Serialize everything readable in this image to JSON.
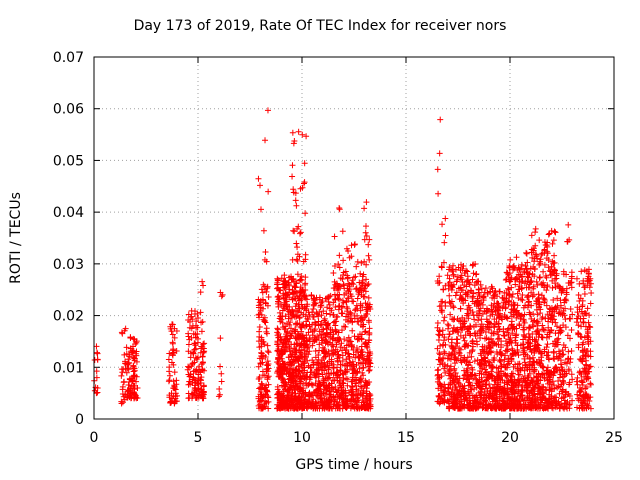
{
  "chart_data": {
    "type": "scatter",
    "title": "Day 173 of 2019, Rate Of TEC Index for receiver nors",
    "xlabel": "GPS time / hours",
    "ylabel": "ROTI / TECUs",
    "xlim": [
      0,
      25
    ],
    "ylim": [
      0,
      0.07
    ],
    "xticks": [
      "0",
      "5",
      "10",
      "15",
      "20",
      "25"
    ],
    "xtick_values": [
      0,
      5,
      10,
      15,
      20,
      25
    ],
    "yticks": [
      "0",
      "0.01",
      "0.02",
      "0.03",
      "0.04",
      "0.05",
      "0.06",
      "0.07"
    ],
    "ytick_values": [
      0,
      0.01,
      0.02,
      0.03,
      0.04,
      0.05,
      0.06,
      0.07
    ],
    "grid": true,
    "marker": "+",
    "color": "#ff0000",
    "series": [
      {
        "name": "ROTI",
        "clusters": [
          {
            "x_range": [
              0.0,
              0.2
            ],
            "y_range": [
              0.005,
              0.016
            ],
            "count": 14
          },
          {
            "x_range": [
              1.3,
              1.6
            ],
            "y_range": [
              0.003,
              0.018
            ],
            "count": 30
          },
          {
            "x_range": [
              1.6,
              2.1
            ],
            "y_range": [
              0.004,
              0.016
            ],
            "count": 90
          },
          {
            "x_range": [
              3.6,
              4.0
            ],
            "y_range": [
              0.003,
              0.019
            ],
            "count": 60
          },
          {
            "x_range": [
              4.5,
              5.3
            ],
            "y_range": [
              0.004,
              0.021
            ],
            "count": 150
          },
          {
            "x_range": [
              5.1,
              5.3
            ],
            "y_range": [
              0.024,
              0.027
            ],
            "count": 3
          },
          {
            "x_range": [
              6.0,
              6.2
            ],
            "y_range": [
              0.004,
              0.026
            ],
            "count": 10
          },
          {
            "x_range": [
              7.9,
              8.4
            ],
            "y_range": [
              0.002,
              0.026
            ],
            "count": 130
          },
          {
            "x_range": [
              7.9,
              8.4
            ],
            "y_range": [
              0.03,
              0.062
            ],
            "count": 10
          },
          {
            "x_range": [
              8.8,
              10.2
            ],
            "y_range": [
              0.002,
              0.028
            ],
            "count": 650
          },
          {
            "x_range": [
              9.5,
              10.2
            ],
            "y_range": [
              0.03,
              0.056
            ],
            "count": 35
          },
          {
            "x_range": [
              10.2,
              11.5
            ],
            "y_range": [
              0.002,
              0.024
            ],
            "count": 380
          },
          {
            "x_range": [
              11.5,
              13.3
            ],
            "y_range": [
              0.002,
              0.027
            ],
            "count": 520
          },
          {
            "x_range": [
              11.5,
              13.3
            ],
            "y_range": [
              0.027,
              0.042
            ],
            "count": 45
          },
          {
            "x_range": [
              16.5,
              16.9
            ],
            "y_range": [
              0.003,
              0.024
            ],
            "count": 80
          },
          {
            "x_range": [
              16.5,
              16.9
            ],
            "y_range": [
              0.025,
              0.058
            ],
            "count": 18
          },
          {
            "x_range": [
              17.0,
              18.5
            ],
            "y_range": [
              0.002,
              0.03
            ],
            "count": 450
          },
          {
            "x_range": [
              18.5,
              19.8
            ],
            "y_range": [
              0.002,
              0.026
            ],
            "count": 420
          },
          {
            "x_range": [
              19.8,
              21.0
            ],
            "y_range": [
              0.002,
              0.03
            ],
            "count": 430
          },
          {
            "x_range": [
              20.0,
              21.0
            ],
            "y_range": [
              0.029,
              0.034
            ],
            "count": 8
          },
          {
            "x_range": [
              21.0,
              22.2
            ],
            "y_range": [
              0.002,
              0.037
            ],
            "count": 420
          },
          {
            "x_range": [
              22.2,
              23.0
            ],
            "y_range": [
              0.002,
              0.029
            ],
            "count": 160
          },
          {
            "x_range": [
              22.6,
              22.9
            ],
            "y_range": [
              0.034,
              0.038
            ],
            "count": 4
          },
          {
            "x_range": [
              23.2,
              23.9
            ],
            "y_range": [
              0.002,
              0.029
            ],
            "count": 180
          }
        ]
      }
    ]
  }
}
